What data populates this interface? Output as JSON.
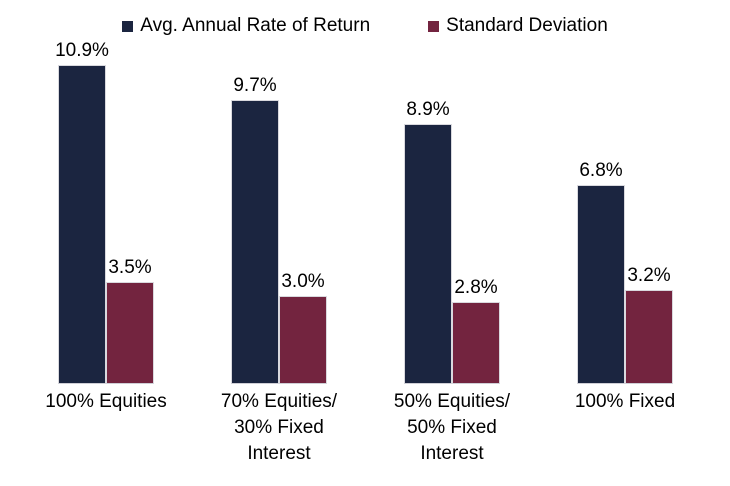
{
  "chart_data": {
    "type": "bar",
    "title": "",
    "xlabel": "",
    "ylabel": "",
    "categories": [
      "100% Equities",
      "70% Equities/\n30% Fixed\nInterest",
      "50% Equities/\n50% Fixed\nInterest",
      "100% Fixed"
    ],
    "series": [
      {
        "name": "Avg. Annual Rate of Return",
        "color": "#1b2540",
        "values": [
          10.9,
          9.7,
          8.9,
          6.8
        ],
        "labels": [
          "10.9%",
          "9.7%",
          "8.9%",
          "6.8%"
        ]
      },
      {
        "name": "Standard Deviation",
        "color": "#73243f",
        "values": [
          3.5,
          3.0,
          2.8,
          3.2
        ],
        "labels": [
          "3.5%",
          "3.0%",
          "2.8%",
          "3.2%"
        ]
      }
    ],
    "ylim": [
      0,
      12
    ],
    "grid": false,
    "axes_visible": false,
    "value_labels": true,
    "legend_position": "top",
    "background": "#ffffff"
  }
}
